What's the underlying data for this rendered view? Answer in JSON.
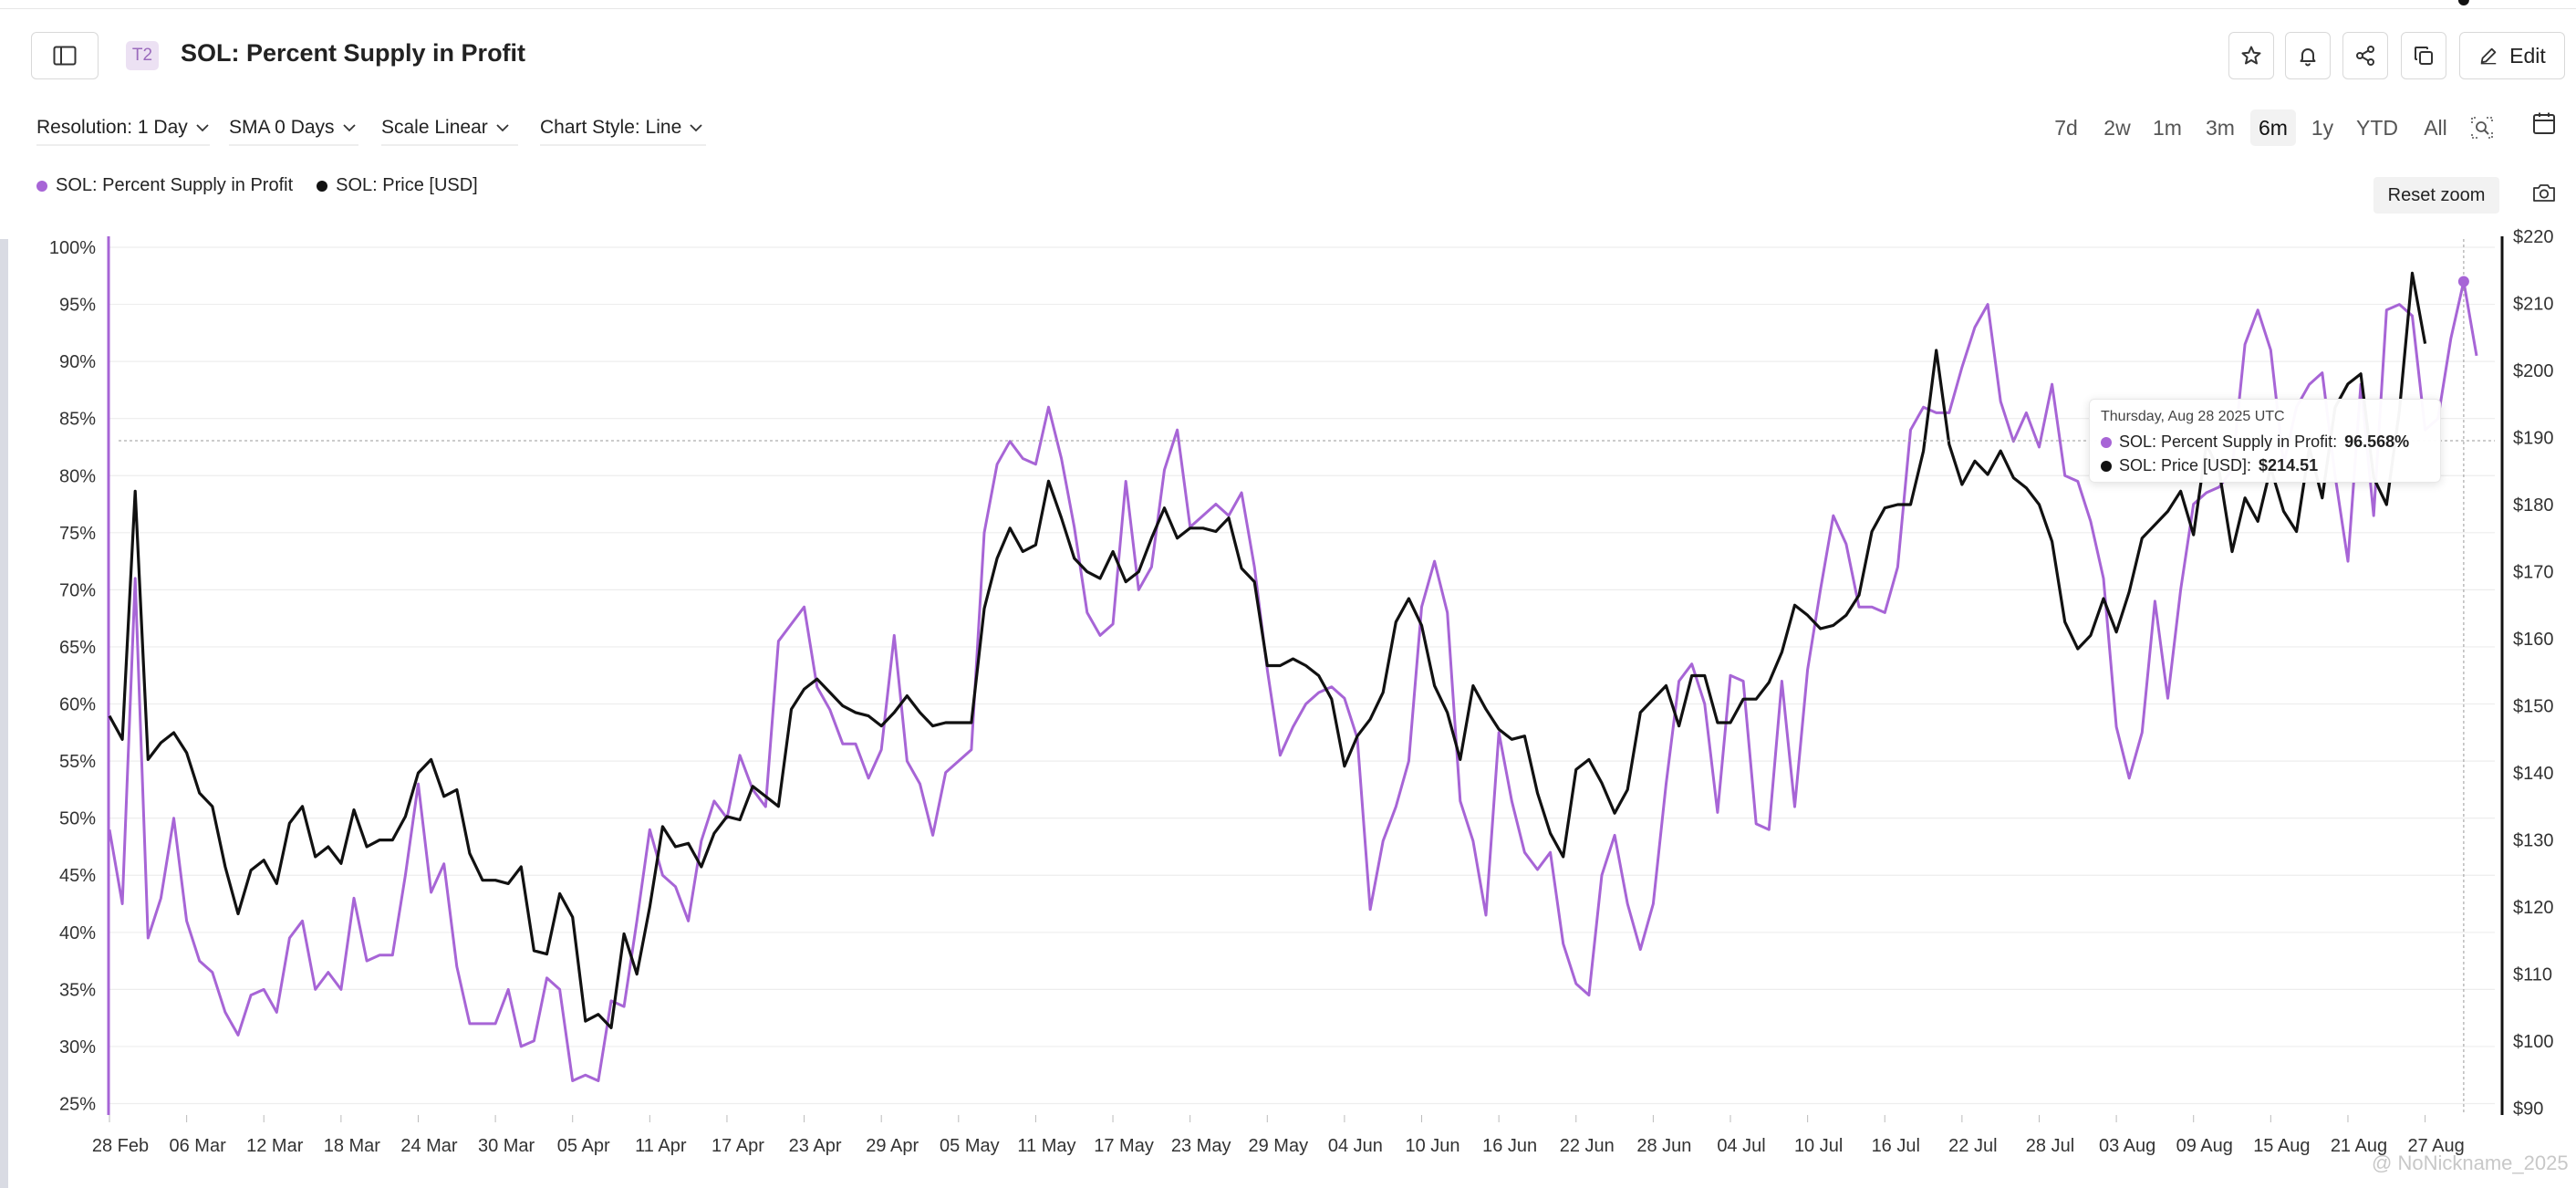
{
  "header": {
    "badge": "T2",
    "title": "SOL: Percent Supply in Profit",
    "edit_label": "Edit",
    "icons": [
      "star-icon",
      "bell-icon",
      "share-icon",
      "copy-icon",
      "edit-icon"
    ]
  },
  "controls": {
    "resolution": "Resolution: 1 Day",
    "sma": "SMA 0 Days",
    "scale": "Scale Linear",
    "chart_style": "Chart Style: Line"
  },
  "ranges": [
    "7d",
    "2w",
    "1m",
    "3m",
    "6m",
    "1y",
    "YTD",
    "All"
  ],
  "active_range": "6m",
  "reset_zoom": "Reset zoom",
  "tooltip": {
    "date": "Thursday, Aug 28 2025 UTC",
    "row1_label": "SOL: Percent Supply in Profit:",
    "row1_value": "96.568%",
    "row2_label": "SOL: Price [USD]:",
    "row2_value": "$214.51"
  },
  "watermark": "@ NoNickname_2025",
  "colors": {
    "profit": "#a765d6",
    "price": "#111111",
    "accent": "#9b6bbd"
  },
  "chart_data": {
    "type": "line",
    "xlabel": "",
    "x_ticks": [
      "28 Feb",
      "06 Mar",
      "12 Mar",
      "18 Mar",
      "24 Mar",
      "30 Mar",
      "05 Apr",
      "11 Apr",
      "17 Apr",
      "23 Apr",
      "29 Apr",
      "05 May",
      "11 May",
      "17 May",
      "23 May",
      "29 May",
      "04 Jun",
      "10 Jun",
      "16 Jun",
      "22 Jun",
      "28 Jun",
      "04 Jul",
      "10 Jul",
      "16 Jul",
      "22 Jul",
      "28 Jul",
      "03 Aug",
      "09 Aug",
      "15 Aug",
      "21 Aug",
      "27 Aug"
    ],
    "y_left": {
      "ylim": [
        24,
        100
      ],
      "ticks": [
        25,
        30,
        35,
        40,
        45,
        50,
        55,
        60,
        65,
        70,
        75,
        80,
        85,
        90,
        95,
        100
      ],
      "format": "%"
    },
    "y_right": {
      "ylim": [
        89,
        220
      ],
      "ticks": [
        90,
        100,
        110,
        120,
        130,
        140,
        150,
        160,
        170,
        180,
        190,
        200,
        210,
        220
      ],
      "format": "$"
    },
    "grid": true,
    "legend": "top-left",
    "series": [
      {
        "name": "SOL: Percent Supply in Profit",
        "axis": "left",
        "color": "#a765d6",
        "values": [
          49,
          42.5,
          71,
          39.5,
          43,
          50,
          41,
          37.5,
          36.5,
          33,
          31,
          34.5,
          35,
          33,
          39.5,
          41,
          35,
          36.5,
          35,
          43,
          37.5,
          38,
          38,
          45,
          53,
          43.5,
          46,
          37,
          32,
          32,
          32,
          35,
          30,
          30.5,
          36,
          35,
          27,
          27.5,
          27,
          34,
          33.5,
          41,
          49,
          45,
          44,
          41,
          48,
          51.5,
          50,
          55.5,
          52.5,
          51,
          65.5,
          67,
          68.5,
          61.5,
          59.5,
          56.5,
          56.5,
          53.5,
          56,
          66,
          55,
          53,
          48.5,
          54,
          55,
          56,
          75,
          81,
          83,
          81.5,
          81,
          86,
          81.5,
          75.5,
          68,
          66,
          67,
          79.5,
          70,
          72,
          80.5,
          84,
          75.5,
          76.5,
          77.5,
          76.5,
          78.5,
          72,
          63,
          55.5,
          58,
          60,
          61,
          61.5,
          60.5,
          57,
          42,
          48,
          51,
          55,
          68.5,
          72.5,
          68,
          51.5,
          48,
          41.5,
          57.5,
          51.5,
          47,
          45.5,
          47,
          39,
          35.5,
          34.5,
          45,
          48.5,
          42.5,
          38.5,
          42.5,
          53,
          62,
          63.5,
          60,
          50.5,
          62.5,
          62,
          49.5,
          49,
          62,
          51,
          63,
          70,
          76.5,
          74,
          68.5,
          68.5,
          68,
          72,
          84,
          86,
          85.5,
          85.5,
          89.5,
          93,
          95,
          86.5,
          83,
          85.5,
          82.5,
          88,
          80,
          79.5,
          76,
          71,
          58,
          53.5,
          57.5,
          69,
          60.5,
          70,
          77.5,
          78.5,
          79,
          80.5,
          91.5,
          94.5,
          91,
          81,
          86,
          88,
          89,
          80,
          72.5,
          88,
          76.5,
          94.5,
          95,
          94,
          84,
          85,
          92,
          97,
          90.5
        ]
      },
      {
        "name": "SOL: Price [USD]",
        "axis": "right",
        "color": "#111111",
        "values": [
          148.5,
          145,
          182,
          142,
          144.5,
          146,
          143,
          137,
          135,
          126,
          119,
          125.5,
          127,
          123.5,
          132.5,
          135,
          127.5,
          129,
          126.5,
          134.5,
          129,
          130,
          130,
          133.5,
          140,
          142,
          136.5,
          137.5,
          128,
          124,
          124,
          123.5,
          126,
          113.5,
          113,
          122,
          118.5,
          103,
          104,
          102,
          116,
          110,
          120,
          132,
          129,
          129.5,
          126,
          131,
          133.5,
          133,
          138,
          136.5,
          135,
          149.5,
          152.5,
          154,
          152,
          150,
          149,
          148.5,
          147,
          149,
          151.5,
          149,
          147,
          147.5,
          147.5,
          147.5,
          164.5,
          172,
          176.5,
          173,
          174,
          183.5,
          178,
          172,
          170,
          169,
          173,
          168.5,
          170,
          175,
          179.5,
          175,
          176.5,
          176.5,
          176,
          178,
          170.5,
          168.5,
          156,
          156,
          157,
          156,
          154.5,
          151,
          141,
          145.5,
          148,
          152,
          162.5,
          166,
          162,
          153,
          149,
          142,
          153,
          149.5,
          146.5,
          145,
          145.5,
          137,
          131,
          127.5,
          140.5,
          142,
          138.5,
          134,
          137.5,
          149,
          151,
          153,
          147,
          154.5,
          154.5,
          147.5,
          147.5,
          151,
          151,
          153.5,
          158,
          165,
          163.5,
          161.5,
          162,
          163.5,
          166.5,
          176,
          179.5,
          180,
          180,
          188,
          203,
          189,
          183,
          186.5,
          184.5,
          188,
          184,
          182.5,
          180,
          174.5,
          162.5,
          158.5,
          160.5,
          166,
          161,
          167,
          175,
          177,
          179,
          182,
          175.5,
          189,
          185,
          173,
          181,
          177.5,
          185.5,
          179,
          176,
          188.5,
          181,
          194.5,
          198,
          199.5,
          184,
          180,
          194,
          214.5,
          204
        ]
      }
    ]
  }
}
